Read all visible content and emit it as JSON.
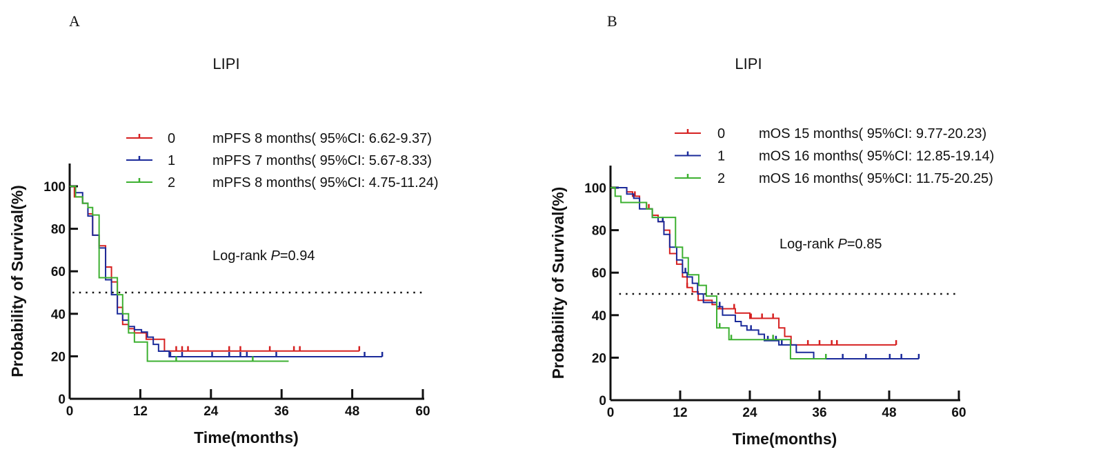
{
  "chart_data": [
    {
      "type": "line",
      "panel_label": "A",
      "title": "LIPI",
      "xlabel": "Time(months)",
      "ylabel": "Probability of Survival(%)",
      "xlim": [
        0,
        60
      ],
      "ylim": [
        0,
        100
      ],
      "xticks": [
        "0",
        "12",
        "24",
        "36",
        "48",
        "60"
      ],
      "yticks": [
        "0",
        "20",
        "40",
        "60",
        "80",
        "100"
      ],
      "reference_line": 50,
      "annotation": {
        "prefix": "Log-rank ",
        "p_label": "P",
        "value": "=0.94"
      },
      "series": [
        {
          "name": "0",
          "label": "mPFS 8 months( 95%CI: 6.62-9.37)",
          "color": "#d62020",
          "steps": [
            [
              0,
              100
            ],
            [
              0.8,
              95
            ],
            [
              2.2,
              92
            ],
            [
              3.1,
              87
            ],
            [
              3.9,
              77
            ],
            [
              5,
              72
            ],
            [
              6.1,
              62
            ],
            [
              7.1,
              55
            ],
            [
              8.1,
              43
            ],
            [
              9,
              35
            ],
            [
              10,
              33
            ],
            [
              11,
              31
            ],
            [
              13,
              28
            ],
            [
              16.1,
              22.5
            ]
          ],
          "end": 49.2,
          "censored": [
            18.1,
            19.1,
            20.1,
            27.1,
            29,
            34,
            38.1,
            39.1,
            49.2
          ]
        },
        {
          "name": "1",
          "label": "mPFS 7 months( 95%CI: 5.67-8.33)",
          "color": "#1a2a9a",
          "steps": [
            [
              0,
              100
            ],
            [
              1,
              97
            ],
            [
              2.2,
              92
            ],
            [
              3.1,
              86
            ],
            [
              3.9,
              77
            ],
            [
              5,
              71
            ],
            [
              6.1,
              56
            ],
            [
              7.1,
              49
            ],
            [
              8.1,
              40
            ],
            [
              9,
              37
            ],
            [
              10,
              34
            ],
            [
              11,
              32.5
            ],
            [
              12.2,
              31.4
            ],
            [
              13.2,
              29
            ],
            [
              14.2,
              25.6
            ],
            [
              15.1,
              22.4
            ],
            [
              16.9,
              19.8
            ]
          ],
          "end": 53.1,
          "censored": [
            17.1,
            19.1,
            24.2,
            27.1,
            29,
            30.1,
            35.1,
            50.1,
            53.1
          ]
        },
        {
          "name": "2",
          "label": "mPFS 8 months( 95%CI: 4.75-11.24)",
          "color": "#3cb030",
          "steps": [
            [
              0,
              100
            ],
            [
              1,
              95
            ],
            [
              2.2,
              92
            ],
            [
              3.1,
              90
            ],
            [
              3.9,
              86.5
            ],
            [
              5,
              57
            ],
            [
              8.1,
              49
            ],
            [
              9,
              40
            ],
            [
              10,
              31
            ],
            [
              11,
              26.7
            ],
            [
              13.2,
              17.7
            ]
          ],
          "end": 37.2,
          "censored": [
            18.1,
            31.1
          ]
        }
      ]
    },
    {
      "type": "line",
      "panel_label": "B",
      "title": "LIPI",
      "xlabel": "Time(months)",
      "ylabel": "Probability of Survival(%)",
      "xlim": [
        0,
        60
      ],
      "ylim": [
        0,
        100
      ],
      "xticks": [
        "0",
        "12",
        "24",
        "36",
        "48",
        "60"
      ],
      "yticks": [
        "0",
        "20",
        "40",
        "60",
        "80",
        "100"
      ],
      "reference_line": 50,
      "annotation": {
        "prefix": "Log-rank ",
        "p_label": "P",
        "value": "=0.85"
      },
      "series": [
        {
          "name": "0",
          "label": "mOS 15 months( 95%CI: 9.77-20.23)",
          "color": "#d62020",
          "steps": [
            [
              0,
              100
            ],
            [
              2.8,
              98
            ],
            [
              3.8,
              96
            ],
            [
              5,
              93
            ],
            [
              6.2,
              90
            ],
            [
              7.2,
              87
            ],
            [
              8.2,
              84
            ],
            [
              9.2,
              80
            ],
            [
              10.2,
              69
            ],
            [
              11.4,
              64
            ],
            [
              12.4,
              58
            ],
            [
              13.2,
              53
            ],
            [
              14.1,
              51
            ],
            [
              15.1,
              47
            ],
            [
              17.5,
              45
            ],
            [
              18.3,
              43
            ],
            [
              21.5,
              41
            ],
            [
              24,
              38.5
            ],
            [
              29,
              34
            ],
            [
              30,
              30
            ],
            [
              31.1,
              26
            ]
          ],
          "end": 49.2,
          "censored": [
            4.2,
            6.6,
            13.2,
            18.8,
            21.3,
            24.2,
            26.1,
            28,
            34,
            36,
            38.1,
            39,
            49.2
          ]
        },
        {
          "name": "1",
          "label": "mOS 16 months( 95%CI: 12.85-19.14)",
          "color": "#1a2a9a",
          "steps": [
            [
              0,
              100
            ],
            [
              2.8,
              97
            ],
            [
              4,
              95
            ],
            [
              5,
              90
            ],
            [
              7.2,
              86
            ],
            [
              8.2,
              84
            ],
            [
              9.2,
              78
            ],
            [
              10.2,
              72
            ],
            [
              11.4,
              66
            ],
            [
              12.4,
              60
            ],
            [
              13.2,
              58
            ],
            [
              14.1,
              55
            ],
            [
              15,
              50
            ],
            [
              16,
              46
            ],
            [
              18.3,
              44
            ],
            [
              19.3,
              40
            ],
            [
              21.5,
              37
            ],
            [
              22.5,
              35
            ],
            [
              23.5,
              33
            ],
            [
              25.5,
              31
            ],
            [
              26.5,
              28
            ],
            [
              29,
              26
            ],
            [
              32,
              22.5
            ],
            [
              35,
              19.5
            ]
          ],
          "end": 53.1,
          "censored": [
            9,
            12.9,
            18.8,
            24.2,
            27.1,
            28.5,
            29.5,
            40,
            44,
            48.1,
            50.1,
            53.1
          ]
        },
        {
          "name": "2",
          "label": "mOS 16 months( 95%CI: 11.75-20.25)",
          "color": "#3cb030",
          "steps": [
            [
              0,
              100
            ],
            [
              0.8,
              96
            ],
            [
              1.8,
              93
            ],
            [
              6.2,
              90
            ],
            [
              7.2,
              86
            ],
            [
              11.2,
              72
            ],
            [
              12.4,
              67
            ],
            [
              13.4,
              59
            ],
            [
              15.2,
              54
            ],
            [
              16.5,
              49
            ],
            [
              18.3,
              34
            ],
            [
              20.4,
              28.5
            ],
            [
              31,
              19.5
            ]
          ],
          "end": 37.1,
          "censored": [
            18.8,
            20.8,
            28,
            37.1
          ]
        }
      ]
    }
  ]
}
